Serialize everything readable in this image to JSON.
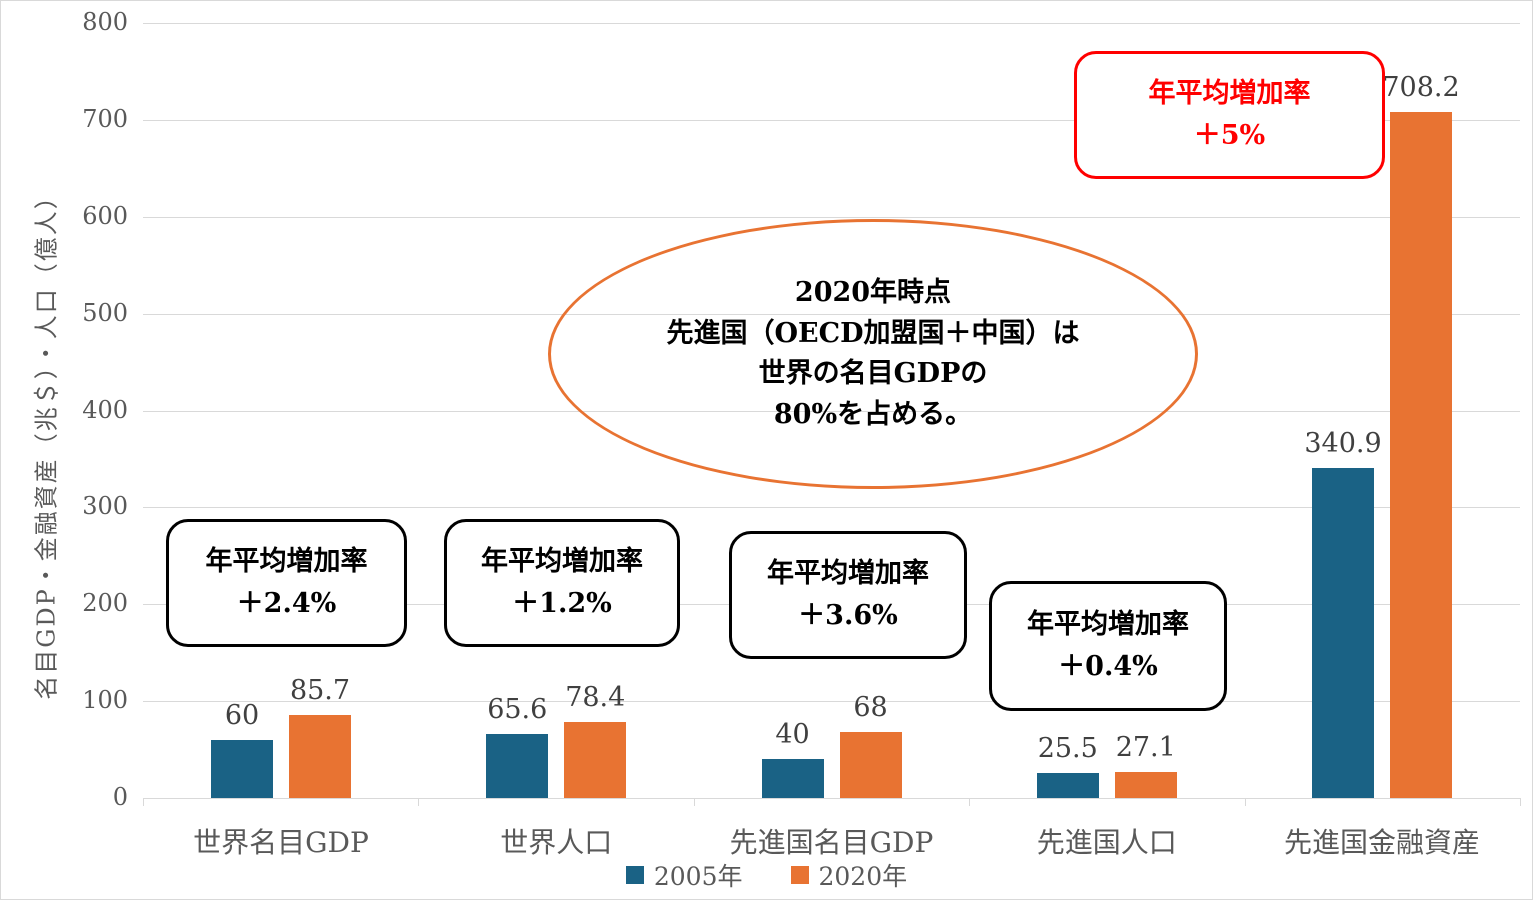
{
  "chart_data": {
    "type": "bar",
    "title": "",
    "categories": [
      "世界名目GDP",
      "世界人口",
      "先進国名目GDP",
      "先進国人口",
      "先進国金融資産"
    ],
    "series": [
      {
        "name": "2005年",
        "color": "#1A6285",
        "values": [
          60,
          65.6,
          40,
          25.5,
          340.9
        ],
        "labels": [
          "60",
          "65.6",
          "40",
          "25.5",
          "340.9"
        ]
      },
      {
        "name": "2020年",
        "color": "#E87332",
        "values": [
          85.7,
          78.4,
          68,
          27.1,
          708.2
        ],
        "labels": [
          "85.7",
          "78.4",
          "68",
          "27.1",
          "708.2"
        ]
      }
    ],
    "xlabel": "",
    "ylabel": "名目GDP・金融資産（兆＄）・人口（億人）",
    "ylim": [
      0,
      800
    ],
    "yticks": [
      "0",
      "100",
      "200",
      "300",
      "400",
      "500",
      "600",
      "700",
      "800"
    ],
    "grid": true,
    "legend_position": "bottom"
  },
  "annotations": {
    "growth_boxes": [
      {
        "title": "年平均増加率",
        "value": "＋2.4%"
      },
      {
        "title": "年平均増加率",
        "value": "＋1.2%"
      },
      {
        "title": "年平均増加率",
        "value": "＋3.6%"
      },
      {
        "title": "年平均増加率",
        "value": "＋0.4%"
      },
      {
        "title": "年平均増加率",
        "value": "＋5%",
        "highlight": true
      }
    ],
    "highlight_color": "#FF0000",
    "ellipse_note": {
      "lines": [
        "2020年時点",
        "先進国（OECD加盟国＋中国）は",
        "世界の名目GDPの",
        "80%を占める。"
      ],
      "border_color": "#E87332"
    }
  }
}
